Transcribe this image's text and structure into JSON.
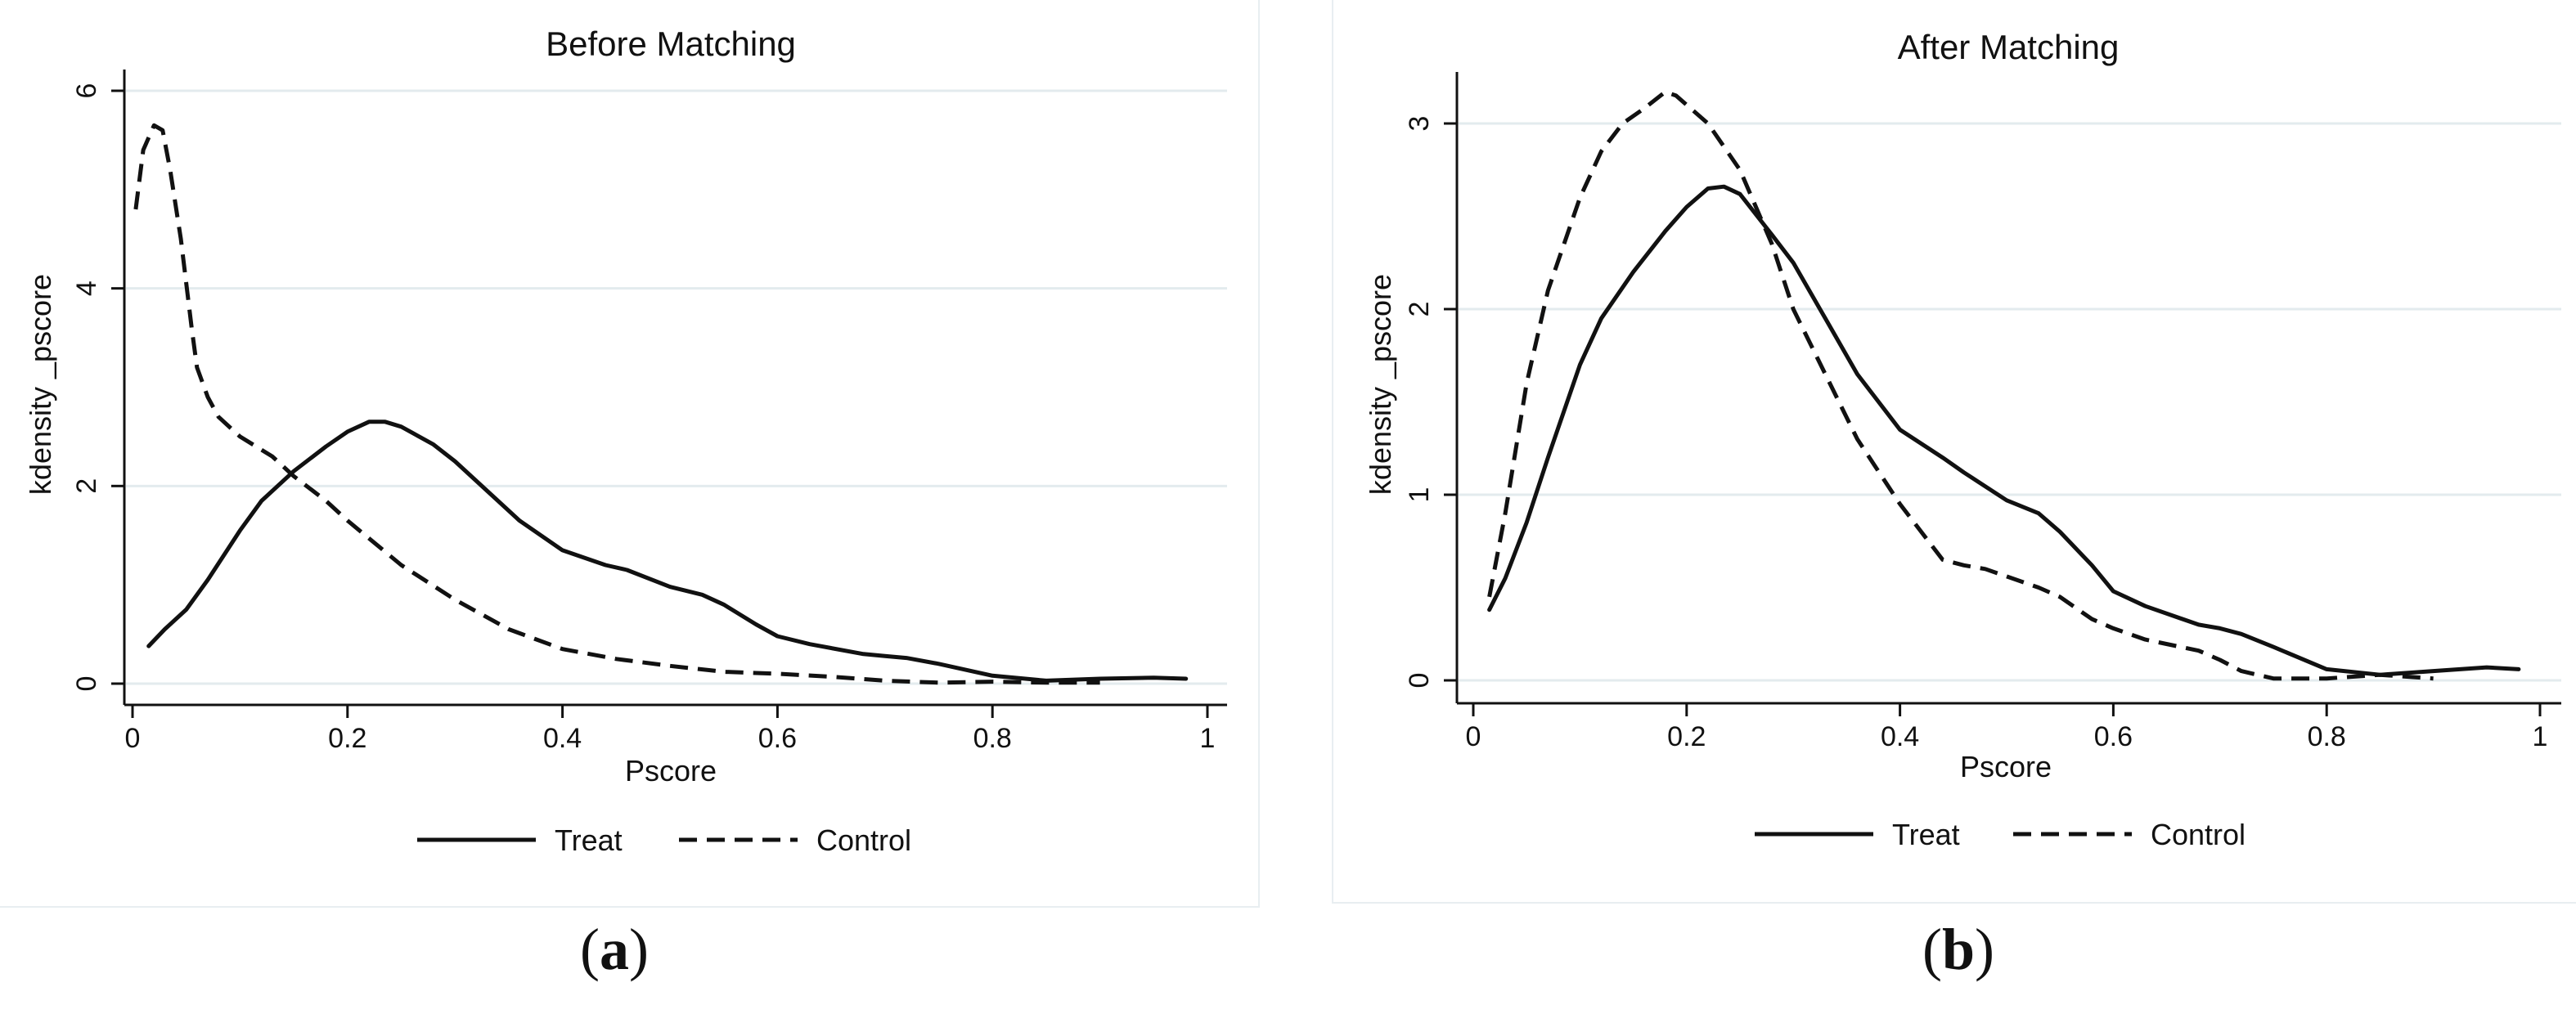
{
  "chart_data": [
    {
      "type": "line",
      "panel": "a",
      "title": "Before Matching",
      "xlabel": "Pscore",
      "ylabel": "kdensity _pscore",
      "xlim": [
        0,
        1
      ],
      "ylim": [
        0,
        6.2
      ],
      "xticks": [
        0,
        0.2,
        0.4,
        0.6,
        0.8,
        1
      ],
      "xtick_labels": [
        "0",
        "0.2",
        "0.4",
        "0.6",
        "0.8",
        "1"
      ],
      "yticks": [
        0,
        2,
        4,
        6
      ],
      "ytick_labels": [
        "0",
        "2",
        "4",
        "6"
      ],
      "grid": true,
      "legend": "bottom",
      "series": [
        {
          "name": "Treat",
          "style": "solid",
          "x": [
            0.015,
            0.03,
            0.05,
            0.07,
            0.1,
            0.12,
            0.15,
            0.18,
            0.2,
            0.22,
            0.235,
            0.25,
            0.28,
            0.3,
            0.33,
            0.36,
            0.4,
            0.44,
            0.46,
            0.5,
            0.53,
            0.55,
            0.58,
            0.6,
            0.63,
            0.68,
            0.7,
            0.72,
            0.75,
            0.8,
            0.85,
            0.9,
            0.95,
            0.98
          ],
          "y": [
            0.38,
            0.55,
            0.75,
            1.05,
            1.55,
            1.85,
            2.15,
            2.4,
            2.55,
            2.65,
            2.65,
            2.6,
            2.42,
            2.25,
            1.95,
            1.65,
            1.35,
            1.2,
            1.15,
            0.98,
            0.9,
            0.8,
            0.6,
            0.48,
            0.4,
            0.3,
            0.28,
            0.26,
            0.2,
            0.08,
            0.03,
            0.05,
            0.06,
            0.05
          ]
        },
        {
          "name": "Control",
          "style": "dashed",
          "x": [
            0.003,
            0.01,
            0.02,
            0.028,
            0.035,
            0.045,
            0.055,
            0.06,
            0.07,
            0.08,
            0.1,
            0.13,
            0.15,
            0.18,
            0.2,
            0.25,
            0.3,
            0.35,
            0.4,
            0.45,
            0.5,
            0.55,
            0.6,
            0.65,
            0.7,
            0.75,
            0.8,
            0.85,
            0.9
          ],
          "y": [
            4.8,
            5.4,
            5.65,
            5.6,
            5.2,
            4.5,
            3.6,
            3.2,
            2.9,
            2.7,
            2.5,
            2.3,
            2.1,
            1.85,
            1.65,
            1.2,
            0.85,
            0.55,
            0.35,
            0.25,
            0.18,
            0.12,
            0.1,
            0.07,
            0.03,
            0.01,
            0.02,
            0.01,
            0.01
          ]
        }
      ]
    },
    {
      "type": "line",
      "panel": "b",
      "title": "After Matching",
      "xlabel": "Pscore",
      "ylabel": "kdensity _pscore",
      "xlim": [
        0,
        1
      ],
      "ylim": [
        0,
        3.3
      ],
      "xticks": [
        0,
        0.2,
        0.4,
        0.6,
        0.8,
        1
      ],
      "xtick_labels": [
        "0",
        "0.2",
        "0.4",
        "0.6",
        "0.8",
        "1"
      ],
      "yticks": [
        0,
        1,
        2,
        3
      ],
      "ytick_labels": [
        "0",
        "1",
        "2",
        "3"
      ],
      "grid": true,
      "legend": "bottom",
      "series": [
        {
          "name": "Treat",
          "style": "solid",
          "x": [
            0.015,
            0.03,
            0.05,
            0.07,
            0.1,
            0.12,
            0.15,
            0.18,
            0.2,
            0.22,
            0.235,
            0.25,
            0.28,
            0.3,
            0.33,
            0.36,
            0.4,
            0.44,
            0.46,
            0.5,
            0.53,
            0.55,
            0.58,
            0.6,
            0.63,
            0.68,
            0.7,
            0.72,
            0.75,
            0.8,
            0.85,
            0.9,
            0.95,
            0.98
          ],
          "y": [
            0.38,
            0.55,
            0.85,
            1.2,
            1.7,
            1.95,
            2.2,
            2.42,
            2.55,
            2.65,
            2.66,
            2.62,
            2.4,
            2.25,
            1.95,
            1.65,
            1.35,
            1.2,
            1.12,
            0.97,
            0.9,
            0.8,
            0.62,
            0.48,
            0.4,
            0.3,
            0.28,
            0.25,
            0.18,
            0.06,
            0.03,
            0.05,
            0.07,
            0.06
          ]
        },
        {
          "name": "Control",
          "style": "dashed",
          "x": [
            0.015,
            0.03,
            0.05,
            0.07,
            0.1,
            0.12,
            0.14,
            0.16,
            0.18,
            0.19,
            0.2,
            0.22,
            0.25,
            0.28,
            0.3,
            0.33,
            0.36,
            0.4,
            0.44,
            0.46,
            0.48,
            0.5,
            0.53,
            0.55,
            0.58,
            0.6,
            0.63,
            0.68,
            0.7,
            0.72,
            0.75,
            0.8,
            0.85,
            0.9
          ],
          "y": [
            0.45,
            0.9,
            1.6,
            2.1,
            2.6,
            2.85,
            3.0,
            3.08,
            3.17,
            3.15,
            3.1,
            3.0,
            2.75,
            2.35,
            2.0,
            1.65,
            1.3,
            0.95,
            0.65,
            0.62,
            0.6,
            0.56,
            0.5,
            0.45,
            0.33,
            0.28,
            0.22,
            0.16,
            0.11,
            0.05,
            0.01,
            0.01,
            0.03,
            0.01
          ]
        }
      ]
    }
  ],
  "captions": {
    "a": {
      "open": "(",
      "letter": "a",
      "close": ")"
    },
    "b": {
      "open": "(",
      "letter": "b",
      "close": ")"
    }
  }
}
